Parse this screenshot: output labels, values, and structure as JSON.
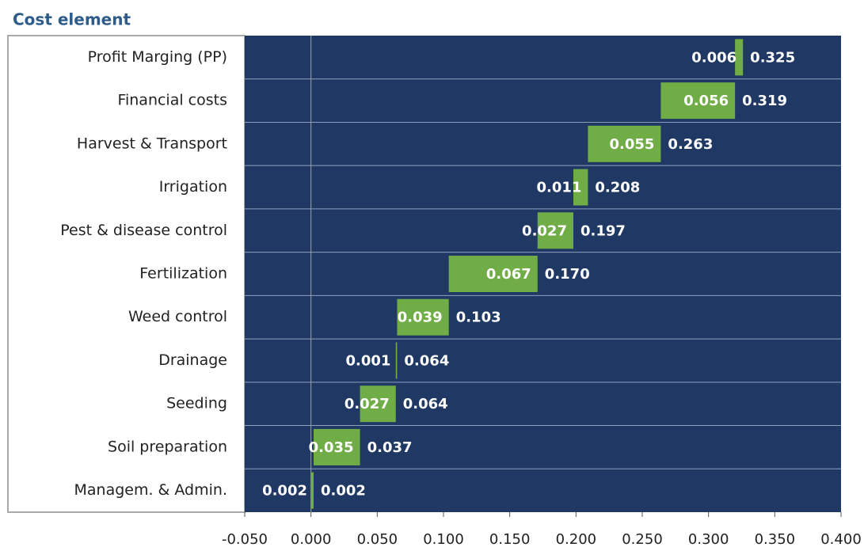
{
  "chart_data": {
    "type": "waterfall",
    "title": "Cost element",
    "categories": [
      "Profit Marging (PP)",
      "Financial costs",
      "Harvest  & Transport",
      "Irrigation",
      "Pest & disease control",
      "Fertilization",
      "Weed control",
      "Drainage",
      "Seeding",
      "Soil preparation",
      "Managem. & Admin."
    ],
    "values": [
      0.006,
      0.056,
      0.055,
      0.011,
      0.027,
      0.067,
      0.039,
      0.001,
      0.027,
      0.035,
      0.002
    ],
    "cumulative_labels": [
      "0.325",
      "0.319",
      "0.263",
      "0.208",
      "0.197",
      "0.170",
      "0.103",
      "0.064",
      "0.064",
      "0.037",
      "0.002"
    ],
    "color": "#70ad47",
    "background": "#203864",
    "xlim": [
      -0.05,
      0.4
    ],
    "xticks": [
      {
        "value": -0.05,
        "label": "-0.050"
      },
      {
        "value": 0,
        "label": "0.000"
      },
      {
        "value": 0.05,
        "label": "0.050"
      },
      {
        "value": 0.1,
        "label": "0.100"
      },
      {
        "value": 0.15,
        "label": "0.150"
      },
      {
        "value": 0.2,
        "label": "0.200"
      },
      {
        "value": 0.25,
        "label": "0.250"
      },
      {
        "value": 0.3,
        "label": "0.300"
      },
      {
        "value": 0.35,
        "label": "0.350"
      },
      {
        "value": 0.4,
        "label": "0.400"
      }
    ]
  }
}
